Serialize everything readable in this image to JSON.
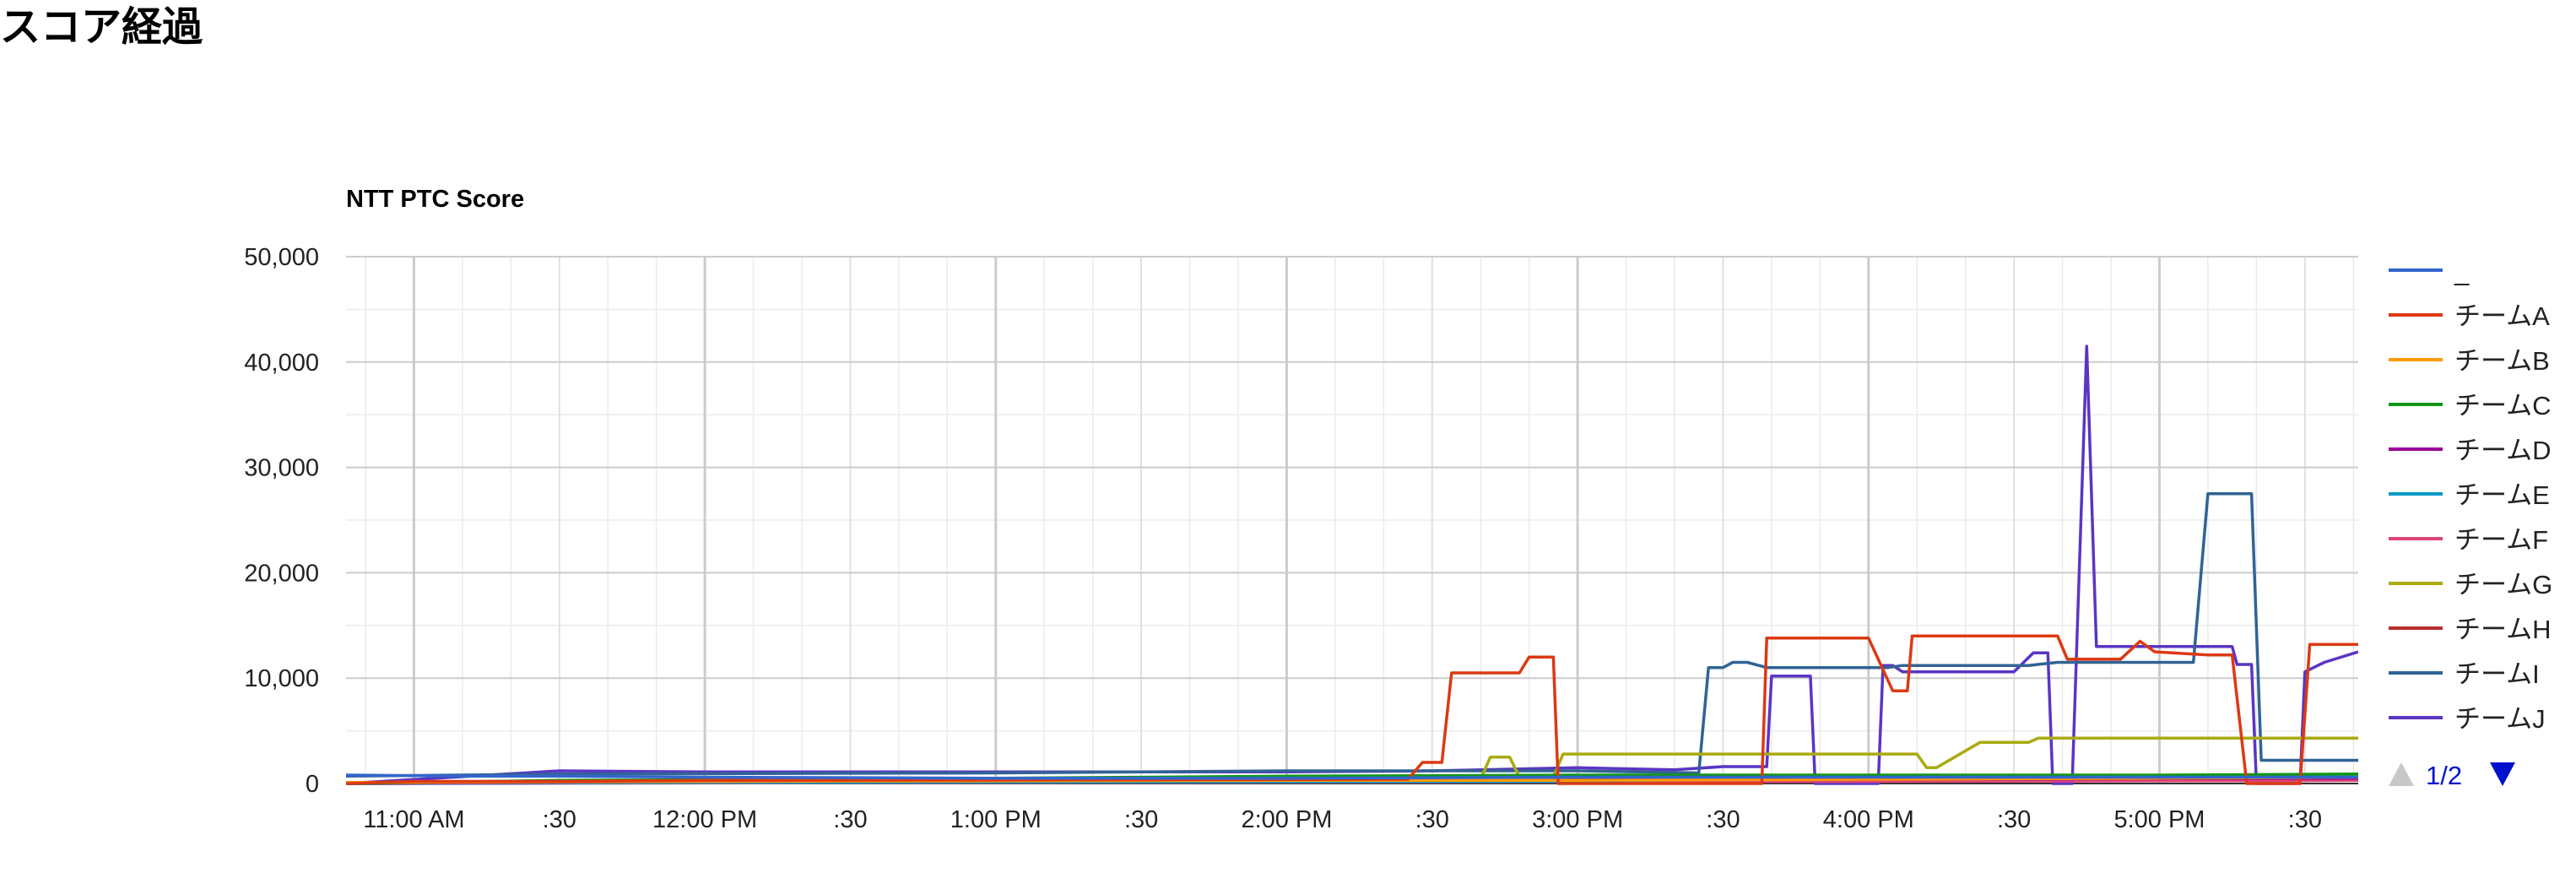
{
  "page": {
    "heading": "スコア経過"
  },
  "chart_data": {
    "type": "line",
    "title": "NTT PTC Score",
    "x_axis": {
      "unit": "time of day",
      "range": [
        "10:46",
        "17:41"
      ],
      "tick_labels": [
        {
          "t": "11:00",
          "label": "11:00 AM"
        },
        {
          "t": "11:30",
          "label": ":30"
        },
        {
          "t": "12:00",
          "label": "12:00 PM"
        },
        {
          "t": "12:30",
          "label": ":30"
        },
        {
          "t": "13:00",
          "label": "1:00 PM"
        },
        {
          "t": "13:30",
          "label": ":30"
        },
        {
          "t": "14:00",
          "label": "2:00 PM"
        },
        {
          "t": "14:30",
          "label": ":30"
        },
        {
          "t": "15:00",
          "label": "3:00 PM"
        },
        {
          "t": "15:30",
          "label": ":30"
        },
        {
          "t": "16:00",
          "label": "4:00 PM"
        },
        {
          "t": "16:30",
          "label": ":30"
        },
        {
          "t": "17:00",
          "label": "5:00 PM"
        },
        {
          "t": "17:30",
          "label": ":30"
        }
      ]
    },
    "y_axis": {
      "range": [
        0,
        50000
      ],
      "ticks": [
        0,
        10000,
        20000,
        30000,
        40000,
        50000
      ],
      "tick_labels": [
        "0",
        "10,000",
        "20,000",
        "30,000",
        "40,000",
        "50,000"
      ]
    },
    "grid": "on",
    "legend": {
      "position": "right",
      "page_indicator": "1/2",
      "prev_icon": "triangle-up-icon",
      "next_icon": "triangle-down-icon"
    },
    "series": [
      {
        "name": "_",
        "color": "#3366cc",
        "points": [
          [
            "10:46",
            800
          ],
          [
            "11:10",
            700
          ],
          [
            "11:30",
            700
          ],
          [
            "12:00",
            600
          ],
          [
            "13:00",
            500
          ],
          [
            "14:00",
            500
          ],
          [
            "15:00",
            600
          ],
          [
            "16:00",
            600
          ],
          [
            "17:00",
            600
          ],
          [
            "17:41",
            600
          ]
        ]
      },
      {
        "name": "チームA",
        "color": "#dc3912",
        "points": [
          [
            "10:46",
            0
          ],
          [
            "11:00",
            200
          ],
          [
            "11:30",
            200
          ],
          [
            "12:00",
            300
          ],
          [
            "14:25",
            400
          ],
          [
            "14:28",
            2000
          ],
          [
            "14:32",
            2000
          ],
          [
            "14:34",
            10500
          ],
          [
            "14:48",
            10500
          ],
          [
            "14:50",
            12000
          ],
          [
            "14:55",
            12000
          ],
          [
            "14:56",
            0
          ],
          [
            "15:38",
            0
          ],
          [
            "15:39",
            13800
          ],
          [
            "16:00",
            13800
          ],
          [
            "16:05",
            8800
          ],
          [
            "16:08",
            8800
          ],
          [
            "16:09",
            14000
          ],
          [
            "16:39",
            14000
          ],
          [
            "16:41",
            11800
          ],
          [
            "16:52",
            11800
          ],
          [
            "16:56",
            13500
          ],
          [
            "16:59",
            12500
          ],
          [
            "17:10",
            12200
          ],
          [
            "17:15",
            12200
          ],
          [
            "17:18",
            0
          ],
          [
            "17:29",
            0
          ],
          [
            "17:31",
            13200
          ],
          [
            "17:41",
            13200
          ]
        ]
      },
      {
        "name": "チームB",
        "color": "#ff9900",
        "points": [
          [
            "10:46",
            100
          ],
          [
            "12:00",
            200
          ],
          [
            "14:00",
            300
          ],
          [
            "15:00",
            300
          ],
          [
            "16:00",
            400
          ],
          [
            "17:00",
            500
          ],
          [
            "17:41",
            600
          ]
        ]
      },
      {
        "name": "チームC",
        "color": "#109618",
        "points": [
          [
            "10:46",
            0
          ],
          [
            "11:30",
            300
          ],
          [
            "13:00",
            500
          ],
          [
            "14:00",
            700
          ],
          [
            "15:00",
            800
          ],
          [
            "16:00",
            800
          ],
          [
            "17:00",
            800
          ],
          [
            "17:41",
            900
          ]
        ]
      },
      {
        "name": "チームD",
        "color": "#990099",
        "points": [
          [
            "10:46",
            0
          ],
          [
            "12:00",
            200
          ],
          [
            "14:00",
            300
          ],
          [
            "16:00",
            400
          ],
          [
            "17:41",
            500
          ]
        ]
      },
      {
        "name": "チームE",
        "color": "#0099c6",
        "points": [
          [
            "10:46",
            0
          ],
          [
            "12:00",
            100
          ],
          [
            "15:00",
            200
          ],
          [
            "15:40",
            500
          ],
          [
            "16:00",
            600
          ],
          [
            "17:00",
            700
          ],
          [
            "17:41",
            700
          ]
        ]
      },
      {
        "name": "チームF",
        "color": "#dd4477",
        "points": [
          [
            "10:46",
            0
          ],
          [
            "13:00",
            100
          ],
          [
            "16:00",
            200
          ],
          [
            "17:41",
            300
          ]
        ]
      },
      {
        "name": "チームG",
        "color": "#aaaa11",
        "points": [
          [
            "10:46",
            0
          ],
          [
            "11:30",
            300
          ],
          [
            "13:00",
            400
          ],
          [
            "14:30",
            400
          ],
          [
            "14:40",
            400
          ],
          [
            "14:42",
            2500
          ],
          [
            "14:46",
            2500
          ],
          [
            "14:48",
            600
          ],
          [
            "14:55",
            600
          ],
          [
            "14:57",
            2800
          ],
          [
            "16:10",
            2800
          ],
          [
            "16:12",
            1500
          ],
          [
            "16:14",
            1500
          ],
          [
            "16:23",
            3900
          ],
          [
            "16:33",
            3900
          ],
          [
            "16:35",
            4300
          ],
          [
            "17:41",
            4300
          ]
        ]
      },
      {
        "name": "チームH",
        "color": "#b82e2e",
        "points": [
          [
            "10:46",
            0
          ],
          [
            "12:00",
            100
          ],
          [
            "15:00",
            200
          ],
          [
            "17:41",
            300
          ]
        ]
      },
      {
        "name": "チームI",
        "color": "#316395",
        "points": [
          [
            "10:46",
            700
          ],
          [
            "11:30",
            900
          ],
          [
            "13:00",
            1000
          ],
          [
            "14:00",
            1200
          ],
          [
            "15:00",
            1200
          ],
          [
            "15:25",
            1000
          ],
          [
            "15:27",
            11000
          ],
          [
            "15:30",
            11000
          ],
          [
            "15:32",
            11500
          ],
          [
            "15:35",
            11500
          ],
          [
            "15:39",
            11000
          ],
          [
            "16:04",
            11000
          ],
          [
            "16:07",
            11200
          ],
          [
            "16:33",
            11200
          ],
          [
            "16:39",
            11500
          ],
          [
            "17:07",
            11500
          ],
          [
            "17:10",
            27500
          ],
          [
            "17:19",
            27500
          ],
          [
            "17:21",
            2200
          ],
          [
            "17:41",
            2200
          ]
        ]
      },
      {
        "name": "チームJ",
        "color": "#5b35c4",
        "points": [
          [
            "10:46",
            0
          ],
          [
            "11:30",
            1200
          ],
          [
            "12:00",
            1100
          ],
          [
            "14:00",
            1100
          ],
          [
            "14:30",
            1200
          ],
          [
            "15:00",
            1500
          ],
          [
            "15:20",
            1300
          ],
          [
            "15:30",
            1600
          ],
          [
            "15:39",
            1600
          ],
          [
            "15:40",
            10200
          ],
          [
            "15:48",
            10200
          ],
          [
            "15:49",
            0
          ],
          [
            "16:02",
            0
          ],
          [
            "16:03",
            11200
          ],
          [
            "16:05",
            11200
          ],
          [
            "16:07",
            10600
          ],
          [
            "16:30",
            10600
          ],
          [
            "16:34",
            12400
          ],
          [
            "16:37",
            12400
          ],
          [
            "16:38",
            0
          ],
          [
            "16:42",
            0
          ],
          [
            "16:45",
            41500
          ],
          [
            "16:47",
            13000
          ],
          [
            "17:15",
            13000
          ],
          [
            "17:16",
            11300
          ],
          [
            "17:19",
            11300
          ],
          [
            "17:20",
            0
          ],
          [
            "17:29",
            0
          ],
          [
            "17:30",
            10600
          ],
          [
            "17:34",
            11500
          ],
          [
            "17:41",
            12500
          ]
        ]
      }
    ]
  }
}
